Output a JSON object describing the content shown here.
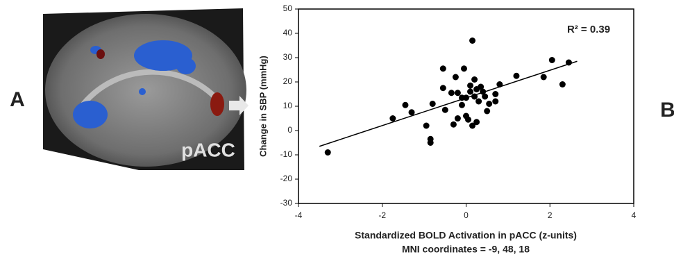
{
  "panel_labels": [
    "A",
    "B"
  ],
  "image_label": "pACC",
  "chart_data": {
    "type": "scatter",
    "xlabel": "Standardized BOLD Activation in pACC (z-units)",
    "xlabel2": "MNI coordinates = -9, 48, 18",
    "ylabel": "Change in SBP (mmHg)",
    "annotation": "R² = 0.39",
    "color": "#000000",
    "xlim": [
      -4,
      4
    ],
    "xticks": [
      -4,
      -2,
      0,
      2,
      4
    ],
    "ylim": [
      -30,
      50
    ],
    "yticks": [
      -30,
      -20,
      -10,
      0,
      10,
      20,
      30,
      40,
      50
    ],
    "x": [
      -3.3,
      -1.75,
      -1.45,
      -1.3,
      -0.95,
      -0.85,
      -0.85,
      -0.8,
      -0.55,
      -0.55,
      -0.5,
      -0.35,
      -0.3,
      -0.25,
      -0.2,
      -0.2,
      -0.1,
      -0.1,
      -0.05,
      0,
      0,
      0.05,
      0.1,
      0.1,
      0.15,
      0.15,
      0.2,
      0.2,
      0.25,
      0.25,
      0.3,
      0.35,
      0.4,
      0.45,
      0.5,
      0.55,
      0.7,
      0.7,
      0.8,
      1.2,
      1.85,
      2.05,
      2.3,
      2.45
    ],
    "values": [
      -9,
      5,
      10.5,
      7.5,
      2,
      -3.5,
      -5,
      11,
      25.5,
      17.5,
      8.5,
      15.5,
      2.5,
      22,
      15.5,
      5,
      13.5,
      10.5,
      25.5,
      13.5,
      6,
      4.5,
      18.5,
      16,
      37,
      2,
      21,
      14,
      3.5,
      17,
      12,
      18,
      16,
      14,
      8,
      11,
      12,
      15,
      19,
      22.5,
      22,
      29,
      19,
      28
    ],
    "trendline": {
      "x": [
        -3.5,
        2.65
      ],
      "y": [
        -6.5,
        28.5
      ]
    }
  }
}
